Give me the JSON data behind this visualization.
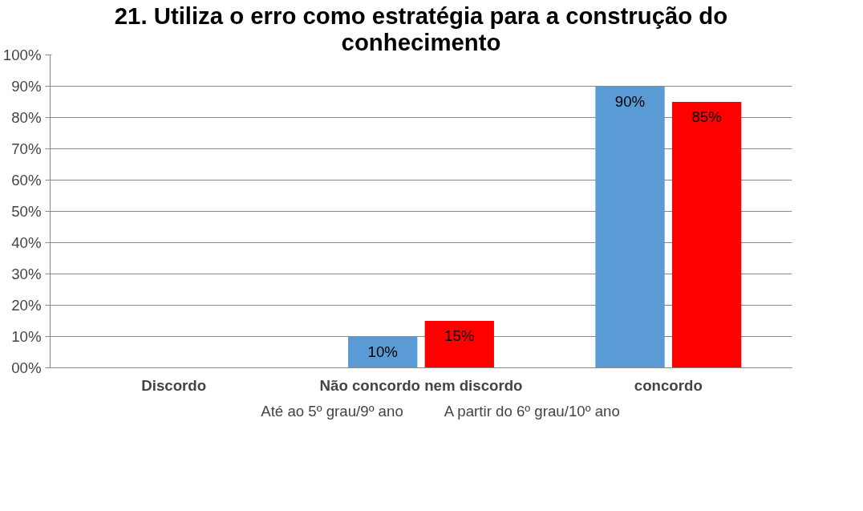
{
  "chart_data": {
    "type": "bar",
    "title": "21. Utiliza o erro como estratégia para a construção do conhecimento",
    "categories": [
      "Discordo",
      "Não concordo nem discordo",
      "concordo"
    ],
    "series": [
      {
        "name": "Até ao 5º grau/9º ano",
        "color": "#5b9bd5",
        "values": [
          null,
          10,
          90
        ],
        "value_labels": [
          null,
          "10%",
          "90%"
        ]
      },
      {
        "name": "A partir do 6º grau/10º ano",
        "color": "#ff0000",
        "values": [
          null,
          15,
          85
        ],
        "value_labels": [
          null,
          "15%",
          "85%"
        ]
      }
    ],
    "ylim": [
      0,
      100
    ],
    "yticks": [
      {
        "value": 0,
        "label": "00%"
      },
      {
        "value": 10,
        "label": "10%"
      },
      {
        "value": 20,
        "label": "20%"
      },
      {
        "value": 30,
        "label": "30%"
      },
      {
        "value": 40,
        "label": "40%"
      },
      {
        "value": 50,
        "label": "50%"
      },
      {
        "value": 60,
        "label": "60%"
      },
      {
        "value": 70,
        "label": "70%"
      },
      {
        "value": 80,
        "label": "80%"
      },
      {
        "value": 90,
        "label": "90%"
      },
      {
        "value": 100,
        "label": "100%"
      }
    ],
    "grid": "y",
    "legend": "bottom"
  }
}
